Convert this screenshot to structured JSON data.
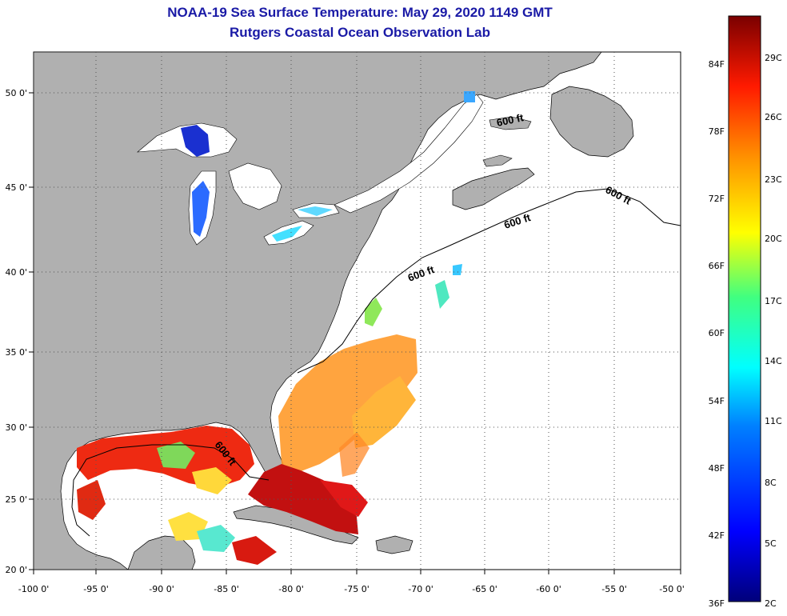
{
  "title": {
    "line1": "NOAA-19 Sea Surface Temperature:  May 29, 2020 1149 GMT",
    "line2": "Rutgers Coastal Ocean Observation Lab"
  },
  "map": {
    "longitude_labels": [
      "-100 0'",
      "-95 0'",
      "-90 0'",
      "-85 0'",
      "-80 0'",
      "-75 0'",
      "-70 0'",
      "-65 0'",
      "-60 0'",
      "-55 0'",
      "-50 0'"
    ],
    "latitude_labels": [
      "50 0'",
      "45 0'",
      "40 0'",
      "35 0'",
      "30 0'",
      "25 0'",
      "20 0'"
    ],
    "contour_label": "600 ft",
    "colors": {
      "land": "#b0b0b0",
      "ocean": "#ffffff",
      "grid": "#555555"
    }
  },
  "colorbar": {
    "fahrenheit_labels": [
      "84F",
      "78F",
      "72F",
      "66F",
      "60F",
      "54F",
      "48F",
      "42F",
      "36F"
    ],
    "celsius_labels": [
      "29C",
      "26C",
      "23C",
      "20C",
      "17C",
      "14C",
      "11C",
      "8C",
      "5C",
      "2C"
    ]
  }
}
